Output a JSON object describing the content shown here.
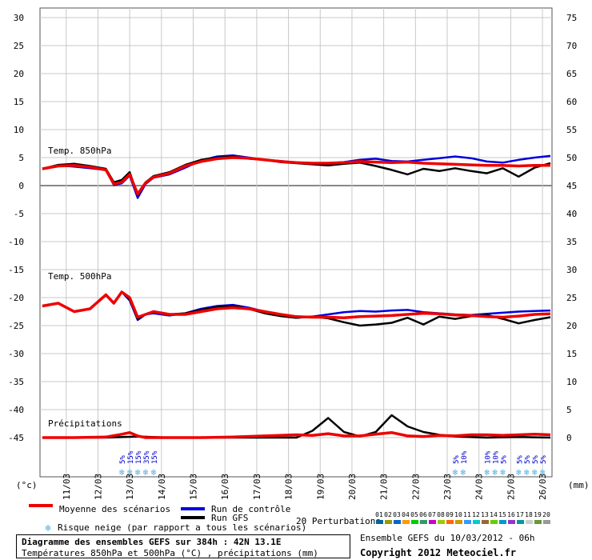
{
  "chart_data": {
    "type": "line",
    "title": "Diagramme des ensembles GEFS sur 384h : 42N 13.1E",
    "subtitle": "Températures 850hPa et 500hPa (°C) , précipitations (mm)",
    "left_unit": "(°c)",
    "right_unit": "(mm)",
    "left_axis": {
      "ylim": [
        -45,
        30
      ],
      "ticks": [
        30,
        25,
        20,
        15,
        10,
        5,
        0,
        -5,
        -10,
        -15,
        -20,
        -25,
        -30,
        -35,
        -40,
        -45
      ]
    },
    "right_axis": {
      "ticks": [
        75,
        70,
        65,
        60,
        55,
        50,
        45,
        40,
        35,
        30,
        25,
        20,
        15,
        10,
        5,
        0
      ]
    },
    "x_axis": {
      "type": "date",
      "range_hours": [
        0,
        384
      ],
      "tick_labels": [
        "11/03",
        "12/03",
        "13/03",
        "14/03",
        "15/03",
        "16/03",
        "17/03",
        "18/03",
        "19/03",
        "20/03",
        "21/03",
        "22/03",
        "23/03",
        "24/03",
        "25/03",
        "26/03"
      ]
    },
    "grid": true,
    "panel_labels": {
      "t850": "Temp. 850hPa",
      "t500": "Temp. 500hPa",
      "precip": "Précipitations"
    },
    "series": [
      {
        "name": "Moyenne des scénarios",
        "panel": "t850",
        "color": "#ee0000",
        "hours": [
          0,
          12,
          24,
          36,
          48,
          54,
          60,
          66,
          72,
          78,
          84,
          96,
          108,
          120,
          132,
          144,
          156,
          168,
          180,
          192,
          204,
          216,
          228,
          240,
          252,
          264,
          276,
          288,
          300,
          312,
          324,
          336,
          348,
          360,
          372,
          384
        ],
        "values": [
          3,
          3.5,
          3.6,
          3.3,
          2.8,
          0.3,
          0.6,
          2,
          -1.5,
          0.5,
          1.5,
          2.2,
          3.5,
          4.3,
          4.8,
          5,
          4.9,
          4.6,
          4.3,
          4.1,
          4,
          4,
          4.1,
          4.3,
          4.2,
          4.1,
          4.2,
          4,
          3.9,
          3.8,
          3.7,
          3.6,
          3.6,
          3.5,
          3.6,
          3.6
        ]
      },
      {
        "name": "Run de contrôle",
        "panel": "t850",
        "color": "#0000dd",
        "hours": [
          0,
          12,
          24,
          36,
          48,
          54,
          60,
          66,
          72,
          78,
          84,
          96,
          108,
          120,
          132,
          144,
          156,
          168,
          180,
          192,
          204,
          216,
          228,
          240,
          252,
          264,
          276,
          288,
          300,
          312,
          324,
          336,
          348,
          360,
          372,
          384
        ],
        "values": [
          3,
          3.6,
          3.4,
          3.1,
          2.8,
          0.1,
          0.4,
          1.8,
          -2.2,
          0.3,
          1.4,
          2,
          3.2,
          4.5,
          5.2,
          5.4,
          5,
          4.6,
          4.4,
          4.1,
          3.9,
          4,
          4.2,
          4.6,
          4.8,
          4.4,
          4.3,
          4.6,
          4.9,
          5.2,
          4.9,
          4.3,
          4.1,
          4.6,
          5,
          5.3
        ]
      },
      {
        "name": "Run GFS",
        "panel": "t850",
        "color": "#000000",
        "hours": [
          0,
          12,
          24,
          36,
          48,
          54,
          60,
          66,
          72,
          78,
          84,
          96,
          108,
          120,
          132,
          144,
          156,
          168,
          180,
          192,
          204,
          216,
          228,
          240,
          252,
          264,
          276,
          288,
          300,
          312,
          324,
          336,
          348,
          360,
          372,
          384
        ],
        "values": [
          3,
          3.7,
          3.9,
          3.5,
          3,
          0.6,
          1,
          2.4,
          -1.7,
          0.6,
          1.7,
          2.4,
          3.7,
          4.6,
          5,
          5.2,
          4.8,
          4.6,
          4.2,
          4,
          3.8,
          3.6,
          3.9,
          4.1,
          3.5,
          2.8,
          2,
          3,
          2.6,
          3.1,
          2.6,
          2.2,
          3.1,
          1.6,
          3.2,
          4
        ]
      },
      {
        "name": "Moyenne des scénarios",
        "panel": "t500",
        "color": "#ee0000",
        "hours": [
          0,
          12,
          24,
          36,
          48,
          54,
          60,
          66,
          72,
          78,
          84,
          96,
          108,
          120,
          132,
          144,
          156,
          168,
          180,
          192,
          204,
          216,
          228,
          240,
          252,
          264,
          276,
          288,
          300,
          312,
          324,
          336,
          348,
          360,
          372,
          384
        ],
        "values": [
          -21.5,
          -21,
          -22.5,
          -22,
          -19.5,
          -21,
          -19,
          -20,
          -23.5,
          -23,
          -22.5,
          -23,
          -23,
          -22.5,
          -22,
          -21.8,
          -22,
          -22.5,
          -23,
          -23.4,
          -23.5,
          -23.5,
          -23.6,
          -23.4,
          -23.3,
          -23.2,
          -23,
          -22.8,
          -22.9,
          -23.1,
          -23.2,
          -23.4,
          -23.5,
          -23.3,
          -23,
          -22.9
        ]
      },
      {
        "name": "Run de contrôle",
        "panel": "t500",
        "color": "#0000dd",
        "hours": [
          0,
          12,
          24,
          36,
          48,
          54,
          60,
          66,
          72,
          78,
          84,
          96,
          108,
          120,
          132,
          144,
          156,
          168,
          180,
          192,
          204,
          216,
          228,
          240,
          252,
          264,
          276,
          288,
          300,
          312,
          324,
          336,
          348,
          360,
          372,
          384
        ],
        "values": [
          -21.5,
          -21,
          -22.5,
          -22,
          -19.5,
          -21,
          -19,
          -20.5,
          -24,
          -23,
          -22.8,
          -23.2,
          -22.8,
          -22,
          -21.5,
          -21.3,
          -21.8,
          -22.5,
          -23.2,
          -23.6,
          -23.4,
          -23,
          -22.6,
          -22.4,
          -22.5,
          -22.3,
          -22.2,
          -22.6,
          -22.8,
          -23,
          -23.1,
          -22.9,
          -22.7,
          -22.5,
          -22.4,
          -22.3
        ]
      },
      {
        "name": "Run GFS",
        "panel": "t500",
        "color": "#000000",
        "hours": [
          0,
          12,
          24,
          36,
          48,
          54,
          60,
          66,
          72,
          78,
          84,
          96,
          108,
          120,
          132,
          144,
          156,
          168,
          180,
          192,
          204,
          216,
          228,
          240,
          252,
          264,
          276,
          288,
          300,
          312,
          324,
          336,
          348,
          360,
          372,
          384
        ],
        "values": [
          -21.5,
          -21,
          -22.5,
          -22,
          -19.5,
          -21,
          -19,
          -20.3,
          -23.8,
          -23,
          -22.6,
          -23,
          -22.8,
          -22.2,
          -21.7,
          -21.5,
          -22,
          -22.8,
          -23.3,
          -23.6,
          -23.4,
          -23.7,
          -24.4,
          -25,
          -24.8,
          -24.5,
          -23.6,
          -24.8,
          -23.4,
          -23.8,
          -23.3,
          -23.1,
          -23.8,
          -24.6,
          -24,
          -23.5
        ]
      },
      {
        "name": "Moyenne des scénarios",
        "panel": "precip",
        "color": "#ee0000",
        "hours": [
          0,
          24,
          48,
          60,
          66,
          72,
          78,
          96,
          120,
          144,
          168,
          192,
          204,
          216,
          228,
          240,
          252,
          264,
          276,
          288,
          300,
          312,
          324,
          336,
          348,
          360,
          372,
          384
        ],
        "values": [
          0,
          0,
          0.1,
          0.6,
          0.9,
          0.3,
          0,
          0,
          0,
          0.1,
          0.3,
          0.5,
          0.4,
          0.7,
          0.3,
          0.3,
          0.6,
          0.9,
          0.3,
          0.2,
          0.4,
          0.3,
          0.5,
          0.5,
          0.4,
          0.5,
          0.6,
          0.5
        ]
      },
      {
        "name": "Run GFS",
        "panel": "precip",
        "color": "#000000",
        "hours": [
          0,
          48,
          72,
          96,
          144,
          192,
          204,
          216,
          228,
          240,
          252,
          264,
          276,
          288,
          300,
          312,
          336,
          360,
          384
        ],
        "values": [
          0,
          0,
          0.2,
          0,
          0,
          0,
          1.2,
          3.5,
          1,
          0.2,
          1,
          4,
          2,
          1,
          0.5,
          0.2,
          0,
          0.1,
          0
        ]
      }
    ],
    "perturbations": {
      "count_label": "20 Perturbations",
      "codes": [
        "01",
        "02",
        "03",
        "04",
        "05",
        "06",
        "07",
        "08",
        "09",
        "10",
        "11",
        "12",
        "13",
        "14",
        "15",
        "16",
        "17",
        "18",
        "19",
        "20"
      ],
      "colors": [
        "#006699",
        "#999900",
        "#0066cc",
        "#ff9900",
        "#00cc00",
        "#339966",
        "#cc00cc",
        "#99cc00",
        "#ff6600",
        "#cc9900",
        "#3399ff",
        "#00cccc",
        "#996633",
        "#66cc00",
        "#0099cc",
        "#9933cc",
        "#009999",
        "#cccccc",
        "#669933",
        "#999999"
      ]
    },
    "snow_risk": [
      {
        "hour": 60,
        "pct": "5%"
      },
      {
        "hour": 66,
        "pct": "15%"
      },
      {
        "hour": 72,
        "pct": "15%"
      },
      {
        "hour": 78,
        "pct": "35%"
      },
      {
        "hour": 84,
        "pct": "15%"
      },
      {
        "hour": 312,
        "pct": "5%"
      },
      {
        "hour": 318,
        "pct": "10%"
      },
      {
        "hour": 336,
        "pct": "10%"
      },
      {
        "hour": 342,
        "pct": "10%"
      },
      {
        "hour": 348,
        "pct": "5%"
      },
      {
        "hour": 360,
        "pct": "5%"
      },
      {
        "hour": 366,
        "pct": "5%"
      },
      {
        "hour": 372,
        "pct": "5%"
      },
      {
        "hour": 378,
        "pct": "5%"
      }
    ]
  },
  "legend": {
    "mean": "Moyenne des scénarios",
    "control": "Run de contrôle",
    "gfs": "Run GFS",
    "snow": "Risque neige (par rapport a tous les scénarios)",
    "perturbations": "20 Perturbations"
  },
  "footer": {
    "title": "Diagramme des ensembles GEFS sur 384h : 42N 13.1E",
    "subtitle": "Températures 850hPa et 500hPa (°C) , précipitations (mm)",
    "run_info": "Ensemble GEFS du 10/03/2012 - 06h",
    "copyright": "Copyright 2012 Meteociel.fr"
  }
}
